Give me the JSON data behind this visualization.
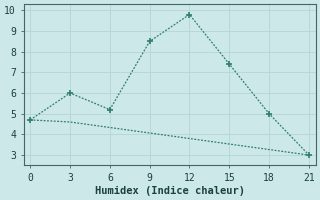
{
  "line1_x": [
    0,
    3,
    6,
    9,
    12,
    15,
    18,
    21
  ],
  "line1_y": [
    4.7,
    6.0,
    5.2,
    8.5,
    9.8,
    7.4,
    5.0,
    3.0
  ],
  "line2_x": [
    0,
    3,
    21
  ],
  "line2_y": [
    4.7,
    4.6,
    3.0
  ],
  "color": "#2e7d6e",
  "bg_color": "#cce8e8",
  "grid_color": "#b8d8d8",
  "xlabel": "Humidex (Indice chaleur)",
  "xlim": [
    -0.5,
    21.5
  ],
  "ylim": [
    2.5,
    10.3
  ],
  "xticks": [
    0,
    3,
    6,
    9,
    12,
    15,
    18,
    21
  ],
  "yticks": [
    3,
    4,
    5,
    6,
    7,
    8,
    9,
    10
  ],
  "font_size": 7,
  "xlabel_font_size": 7.5,
  "line_width": 0.9,
  "marker_size": 5
}
